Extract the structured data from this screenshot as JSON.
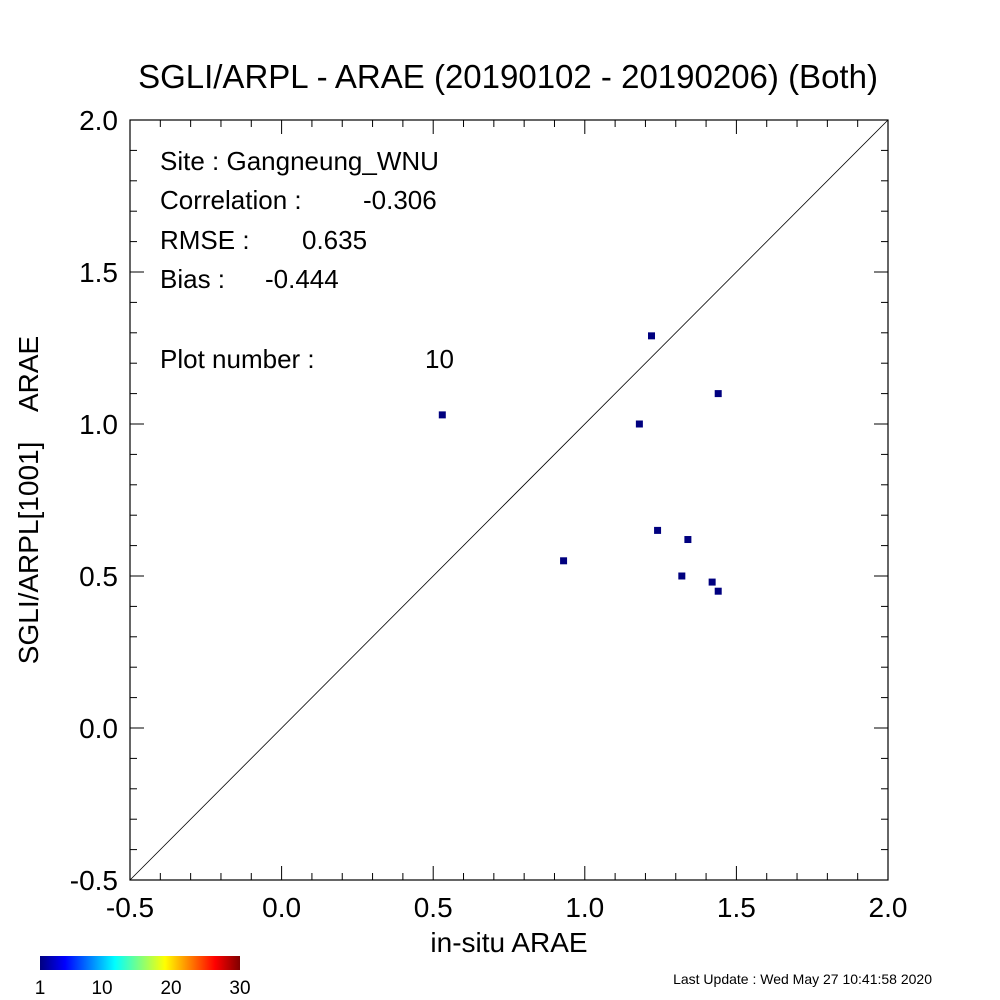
{
  "chart_data": {
    "type": "scatter",
    "title": "SGLI/ARPL - ARAE (20190102 - 20190206) (Both)",
    "xlabel": "in-situ ARAE",
    "ylabel": "SGLI/ARPL[1001]    ARAE",
    "xlim": [
      -0.5,
      2.0
    ],
    "ylim": [
      -0.5,
      2.0
    ],
    "x_ticks": [
      "-0.5",
      "0.0",
      "0.5",
      "1.0",
      "1.5",
      "2.0"
    ],
    "y_ticks": [
      "-0.5",
      "0.0",
      "0.5",
      "1.0",
      "1.5",
      "2.0"
    ],
    "one_to_one_line": true,
    "grid": false,
    "marker_color": "#00007f",
    "points": [
      {
        "x": 0.53,
        "y": 1.03
      },
      {
        "x": 0.93,
        "y": 0.55
      },
      {
        "x": 1.18,
        "y": 1.0
      },
      {
        "x": 1.22,
        "y": 1.29
      },
      {
        "x": 1.24,
        "y": 0.65
      },
      {
        "x": 1.32,
        "y": 0.5
      },
      {
        "x": 1.34,
        "y": 0.62
      },
      {
        "x": 1.42,
        "y": 0.48
      },
      {
        "x": 1.44,
        "y": 1.1
      },
      {
        "x": 1.44,
        "y": 0.45
      }
    ]
  },
  "stats": {
    "site": "Site : Gangneung_WNU",
    "correlation_label": "Correlation :",
    "correlation_value": "-0.306",
    "rmse_label": "RMSE :",
    "rmse_value": "0.635",
    "bias_label": "Bias :",
    "bias_value": "-0.444",
    "plot_number_label": "Plot number :",
    "plot_number_value": "10"
  },
  "colorbar": {
    "labels": [
      "1",
      "10",
      "20",
      "30"
    ],
    "values": [
      1,
      10,
      20,
      30
    ],
    "range": [
      1,
      30
    ]
  },
  "last_update": "Last Update : Wed May 27 10:41:58 2020"
}
